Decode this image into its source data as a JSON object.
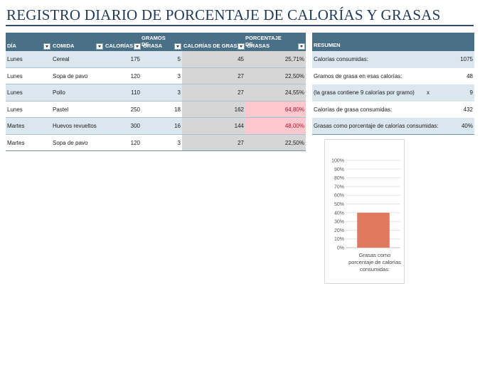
{
  "title": "REGISTRO DIARIO DE PORCENTAJE DE CALORÍAS Y GRASAS",
  "table": {
    "headers": {
      "dia": "DÍA",
      "comida": "COMIDA",
      "calorias": "CALORÍAS",
      "gramos_top": "GRAMOS DE",
      "gramos_bottom": "GRASA",
      "calorias_grasa": "CALORÍAS DE GRASA",
      "pct_top": "PORCENTAJE DE",
      "pct_bottom": "GRASAS"
    },
    "rows": [
      {
        "dia": "Lunes",
        "comida": "Cereal",
        "calorias": "175",
        "gramos": "5",
        "cal_grasa": "45",
        "pct": "25,71%",
        "highlight": false
      },
      {
        "dia": "Lunes",
        "comida": "Sopa de pavo",
        "calorias": "120",
        "gramos": "3",
        "cal_grasa": "27",
        "pct": "22,50%",
        "highlight": false
      },
      {
        "dia": "Lunes",
        "comida": "Pollo",
        "calorias": "110",
        "gramos": "3",
        "cal_grasa": "27",
        "pct": "24,55%",
        "highlight": false
      },
      {
        "dia": "Lunes",
        "comida": "Pastel",
        "calorias": "250",
        "gramos": "18",
        "cal_grasa": "162",
        "pct": "64,80%",
        "highlight": true
      },
      {
        "dia": "Martes",
        "comida": "Huevos revueltos",
        "calorias": "300",
        "gramos": "16",
        "cal_grasa": "144",
        "pct": "48,00%",
        "highlight": true
      },
      {
        "dia": "Martes",
        "comida": "Sopa de pavo",
        "calorias": "120",
        "gramos": "3",
        "cal_grasa": "27",
        "pct": "22,50%",
        "highlight": false
      }
    ]
  },
  "summary": {
    "header": "RESUMEN",
    "rows": [
      {
        "label": "Calorías consumidas:",
        "extra": "",
        "value": "1075"
      },
      {
        "label": "Gramos de grasa en esas calorías:",
        "extra": "",
        "value": "48"
      },
      {
        "label": "(la grasa contiene 9 calorías por gramo)",
        "extra": "x",
        "value": "9"
      },
      {
        "label": "Calorías de grasa consumidas:",
        "extra": "",
        "value": "432"
      },
      {
        "label": "Grasas como porcentaje de calorías consumidas:",
        "extra": "",
        "value": "40%"
      }
    ]
  },
  "colors": {
    "header_bg": "#4a7088",
    "band_bg": "#dbe7ee",
    "highlight_bg": "#ffc7ce",
    "highlight_text": "#b3142b",
    "bar": "#e07a5f"
  },
  "chart_data": {
    "type": "bar",
    "categories": [
      "Grasas como porcentaje de calorías consumidas:"
    ],
    "values": [
      40
    ],
    "ylim": [
      0,
      100
    ],
    "yticks": [
      "0%",
      "10%",
      "20%",
      "30%",
      "40%",
      "50%",
      "60%",
      "70%",
      "80%",
      "90%",
      "100%"
    ],
    "grid": true,
    "legend": false
  }
}
